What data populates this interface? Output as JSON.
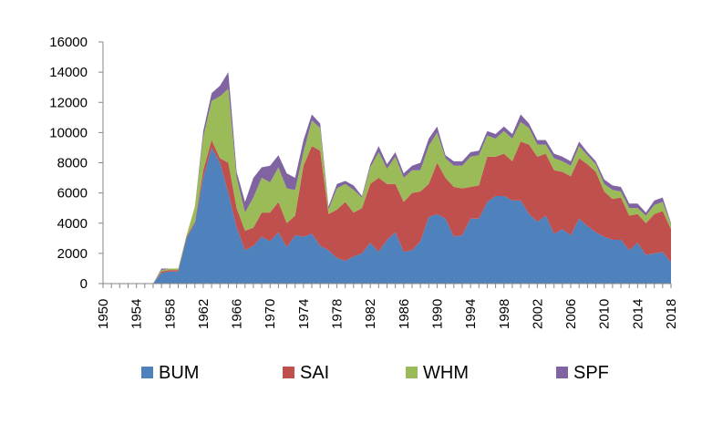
{
  "chart_data": {
    "type": "area",
    "stacked": true,
    "title": "",
    "xlabel": "",
    "ylabel": "",
    "xlim": [
      1950,
      2018
    ],
    "ylim": [
      0,
      16000
    ],
    "yticks": [
      0,
      2000,
      4000,
      6000,
      8000,
      10000,
      12000,
      14000,
      16000
    ],
    "xticks": [
      1950,
      1954,
      1958,
      1962,
      1966,
      1970,
      1974,
      1978,
      1982,
      1986,
      1990,
      1994,
      1998,
      2002,
      2006,
      2010,
      2014,
      2018
    ],
    "grid": false,
    "legend_position": "bottom",
    "x": [
      1950,
      1951,
      1952,
      1953,
      1954,
      1955,
      1956,
      1957,
      1958,
      1959,
      1960,
      1961,
      1962,
      1963,
      1964,
      1965,
      1966,
      1967,
      1968,
      1969,
      1970,
      1971,
      1972,
      1973,
      1974,
      1975,
      1976,
      1977,
      1978,
      1979,
      1980,
      1981,
      1982,
      1983,
      1984,
      1985,
      1986,
      1987,
      1988,
      1989,
      1990,
      1991,
      1992,
      1993,
      1994,
      1995,
      1996,
      1997,
      1998,
      1999,
      2000,
      2001,
      2002,
      2003,
      2004,
      2005,
      2006,
      2007,
      2008,
      2009,
      2010,
      2011,
      2012,
      2013,
      2014,
      2015,
      2016,
      2017,
      2018
    ],
    "series": [
      {
        "name": "BUM",
        "color": "#4f81bd",
        "values": [
          0,
          0,
          0,
          0,
          0,
          0,
          0,
          700,
          800,
          800,
          3000,
          4000,
          7000,
          9000,
          8000,
          6000,
          3700,
          2200,
          2500,
          3100,
          2800,
          3400,
          2400,
          3200,
          3100,
          3300,
          2500,
          2200,
          1700,
          1500,
          1800,
          2000,
          2700,
          2100,
          2900,
          3400,
          2100,
          2200,
          2800,
          4400,
          4600,
          4300,
          3100,
          3200,
          4300,
          4300,
          5400,
          5800,
          5800,
          5500,
          5500,
          4600,
          4100,
          4500,
          3300,
          3600,
          3200,
          4300,
          3800,
          3400,
          3100,
          2900,
          2900,
          2200,
          2700,
          1900,
          2000,
          2100,
          1400
        ]
      },
      {
        "name": "SAI",
        "color": "#c0504d",
        "values": [
          0,
          0,
          0,
          0,
          0,
          0,
          0,
          100,
          100,
          100,
          100,
          100,
          500,
          500,
          300,
          2000,
          1300,
          1300,
          1200,
          1600,
          1900,
          2000,
          1600,
          1300,
          4700,
          5800,
          6300,
          2400,
          3200,
          3900,
          2900,
          3000,
          3900,
          4900,
          3700,
          3200,
          3300,
          3800,
          3300,
          2200,
          3400,
          2700,
          3300,
          3100,
          2100,
          2200,
          3000,
          2600,
          2800,
          2600,
          3900,
          4600,
          4300,
          4100,
          4200,
          3800,
          3900,
          4000,
          4100,
          4000,
          3000,
          2700,
          2800,
          2300,
          1900,
          2100,
          2600,
          2700,
          2200
        ]
      },
      {
        "name": "WHM",
        "color": "#9bbb59",
        "values": [
          0,
          0,
          0,
          0,
          0,
          0,
          0,
          100,
          100,
          100,
          100,
          1000,
          2200,
          2600,
          4100,
          4900,
          2000,
          1200,
          2000,
          2300,
          2000,
          2300,
          2300,
          1700,
          900,
          1700,
          1500,
          300,
          1400,
          1200,
          1500,
          700,
          1100,
          1700,
          1000,
          1800,
          1600,
          1500,
          1400,
          2500,
          2000,
          1300,
          1400,
          1500,
          2000,
          2000,
          1400,
          1200,
          1500,
          1500,
          1300,
          1100,
          800,
          600,
          800,
          700,
          700,
          800,
          600,
          500,
          500,
          600,
          400,
          500,
          400,
          500,
          600,
          600,
          300
        ]
      },
      {
        "name": "SPF",
        "color": "#8064a2",
        "values": [
          0,
          0,
          0,
          0,
          0,
          0,
          0,
          100,
          0,
          0,
          0,
          0,
          400,
          500,
          700,
          1100,
          400,
          700,
          1300,
          700,
          1100,
          800,
          1000,
          800,
          800,
          400,
          300,
          200,
          300,
          200,
          300,
          100,
          200,
          400,
          300,
          300,
          300,
          300,
          500,
          500,
          400,
          200,
          300,
          300,
          300,
          300,
          300,
          300,
          300,
          300,
          500,
          300,
          300,
          300,
          300,
          300,
          300,
          300,
          200,
          200,
          300,
          300,
          300,
          300,
          300,
          200,
          300,
          300,
          100
        ]
      }
    ]
  }
}
